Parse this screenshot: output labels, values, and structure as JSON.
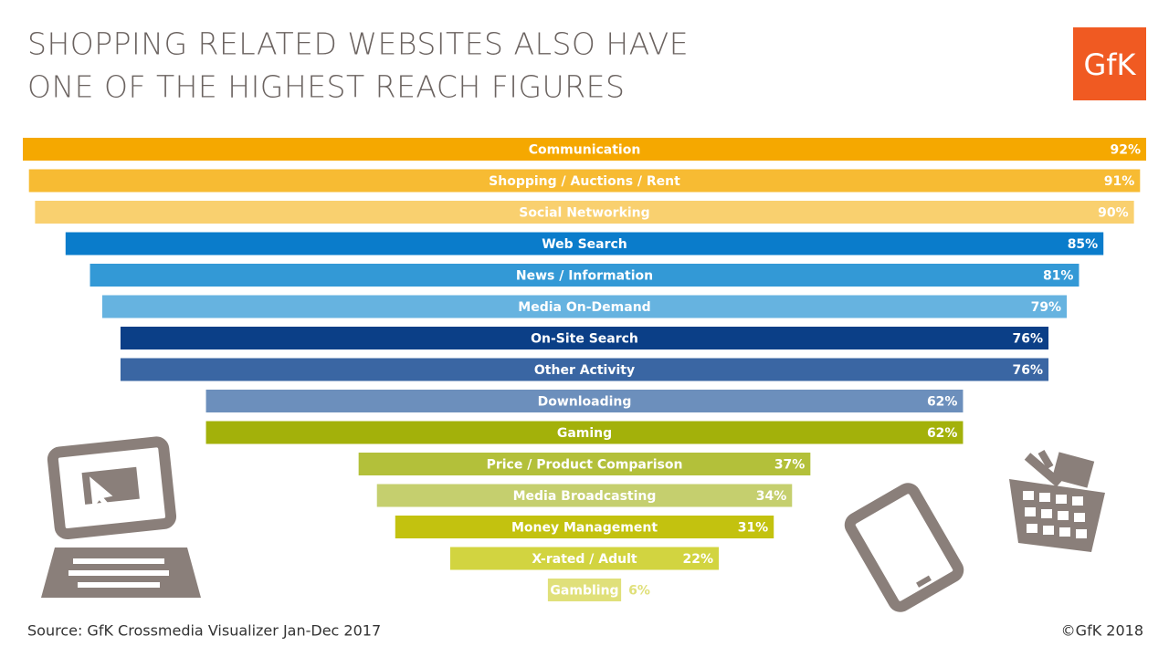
{
  "chart_data": {
    "type": "bar",
    "orientation": "horizontal-centered",
    "title": [
      "SHOPPING RELATED WEBSITES ALSO HAVE",
      "ONE OF THE HIGHEST REACH FIGURES"
    ],
    "logo": "GfK",
    "categories": [
      "Communication",
      "Shopping / Auctions / Rent",
      "Social Networking",
      "Web Search",
      "News / Information",
      "Media On-Demand",
      "On-Site Search",
      "Other Activity",
      "Downloading",
      "Gaming",
      "Price / Product Comparison",
      "Media Broadcasting",
      "Money Management",
      "X-rated / Adult",
      "Gambling"
    ],
    "values": [
      92,
      91,
      90,
      85,
      81,
      79,
      76,
      76,
      62,
      62,
      37,
      34,
      31,
      22,
      6
    ],
    "value_labels": [
      "92%",
      "91%",
      "90%",
      "85%",
      "81%",
      "79%",
      "76%",
      "76%",
      "62%",
      "62%",
      "37%",
      "34%",
      "31%",
      "22%",
      "6%"
    ],
    "colors": [
      "#f5a800",
      "#f7bb33",
      "#f9d06f",
      "#0a7ccb",
      "#3399d6",
      "#66b3e0",
      "#0b3f87",
      "#3a66a3",
      "#6c8fbc",
      "#a3b10a",
      "#b3c03a",
      "#c5cf6e",
      "#c3c20f",
      "#d2d440",
      "#e0e07a"
    ],
    "source": "Source: GfK Crossmedia Visualizer Jan-Dec 2017",
    "copyright": "©GfK 2018"
  }
}
